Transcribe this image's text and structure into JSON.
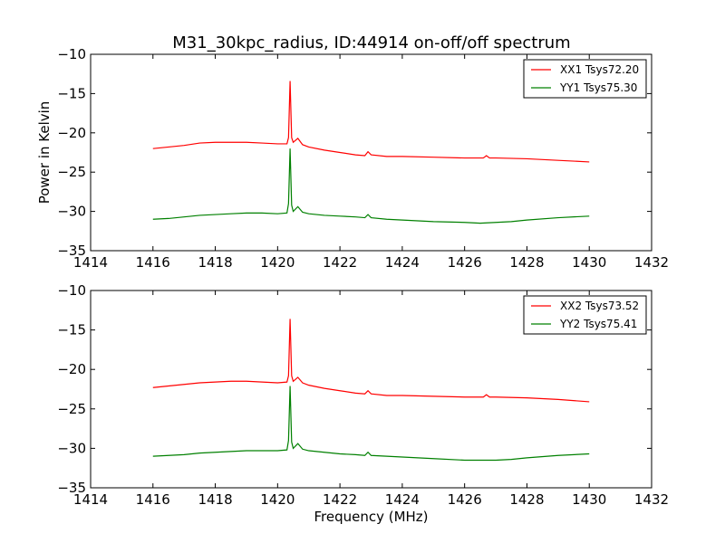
{
  "figure": {
    "title": "M31_30kpc_radius, ID:44914 on-off/off spectrum"
  },
  "chart_data": [
    {
      "type": "line",
      "title": "M31_30kpc_radius, ID:44914 on-off/off spectrum",
      "xlabel": "",
      "ylabel": "Power in Kelvin",
      "xlim": [
        1414,
        1432
      ],
      "ylim": [
        -35,
        -10
      ],
      "xticks": [
        1414,
        1416,
        1418,
        1420,
        1422,
        1424,
        1426,
        1428,
        1430,
        1432
      ],
      "yticks": [
        -35,
        -30,
        -25,
        -20,
        -15,
        -10
      ],
      "legend_position": "upper right",
      "series": [
        {
          "name": "XX1 Tsys72.20",
          "color": "#ff0000",
          "points": [
            [
              1416,
              -22.0
            ],
            [
              1416.5,
              -21.8
            ],
            [
              1417,
              -21.6
            ],
            [
              1417.5,
              -21.3
            ],
            [
              1418,
              -21.2
            ],
            [
              1418.5,
              -21.2
            ],
            [
              1419,
              -21.2
            ],
            [
              1419.5,
              -21.3
            ],
            [
              1420,
              -21.4
            ],
            [
              1420.3,
              -21.4
            ],
            [
              1420.35,
              -20.6
            ],
            [
              1420.4,
              -13.4
            ],
            [
              1420.45,
              -20.6
            ],
            [
              1420.5,
              -21.2
            ],
            [
              1420.65,
              -20.7
            ],
            [
              1420.8,
              -21.5
            ],
            [
              1421,
              -21.8
            ],
            [
              1421.5,
              -22.2
            ],
            [
              1422,
              -22.5
            ],
            [
              1422.5,
              -22.8
            ],
            [
              1422.8,
              -22.9
            ],
            [
              1422.9,
              -22.4
            ],
            [
              1423,
              -22.8
            ],
            [
              1423.5,
              -23.0
            ],
            [
              1424,
              -23.0
            ],
            [
              1425,
              -23.1
            ],
            [
              1426,
              -23.2
            ],
            [
              1426.6,
              -23.2
            ],
            [
              1426.7,
              -22.9
            ],
            [
              1426.8,
              -23.2
            ],
            [
              1427,
              -23.2
            ],
            [
              1428,
              -23.3
            ],
            [
              1429,
              -23.5
            ],
            [
              1430,
              -23.7
            ]
          ]
        },
        {
          "name": "YY1 Tsys75.30",
          "color": "#008000",
          "points": [
            [
              1416,
              -31.0
            ],
            [
              1416.5,
              -30.9
            ],
            [
              1417,
              -30.7
            ],
            [
              1417.5,
              -30.5
            ],
            [
              1418,
              -30.4
            ],
            [
              1418.5,
              -30.3
            ],
            [
              1419,
              -30.2
            ],
            [
              1419.5,
              -30.2
            ],
            [
              1420,
              -30.3
            ],
            [
              1420.3,
              -30.2
            ],
            [
              1420.35,
              -29.0
            ],
            [
              1420.4,
              -22.0
            ],
            [
              1420.45,
              -29.2
            ],
            [
              1420.5,
              -30.0
            ],
            [
              1420.65,
              -29.4
            ],
            [
              1420.8,
              -30.1
            ],
            [
              1421,
              -30.3
            ],
            [
              1421.5,
              -30.5
            ],
            [
              1422,
              -30.6
            ],
            [
              1422.5,
              -30.7
            ],
            [
              1422.8,
              -30.8
            ],
            [
              1422.9,
              -30.4
            ],
            [
              1423,
              -30.8
            ],
            [
              1423.5,
              -31.0
            ],
            [
              1424,
              -31.1
            ],
            [
              1425,
              -31.3
            ],
            [
              1426,
              -31.4
            ],
            [
              1426.5,
              -31.5
            ],
            [
              1427,
              -31.4
            ],
            [
              1427.5,
              -31.3
            ],
            [
              1428,
              -31.1
            ],
            [
              1429,
              -30.8
            ],
            [
              1430,
              -30.6
            ]
          ]
        }
      ]
    },
    {
      "type": "line",
      "xlabel": "Frequency (MHz)",
      "ylabel": "",
      "xlim": [
        1414,
        1432
      ],
      "ylim": [
        -35,
        -10
      ],
      "xticks": [
        1414,
        1416,
        1418,
        1420,
        1422,
        1424,
        1426,
        1428,
        1430,
        1432
      ],
      "yticks": [
        -35,
        -30,
        -25,
        -20,
        -15,
        -10
      ],
      "legend_position": "upper right",
      "series": [
        {
          "name": "XX2 Tsys73.52",
          "color": "#ff0000",
          "points": [
            [
              1416,
              -22.3
            ],
            [
              1416.5,
              -22.1
            ],
            [
              1417,
              -21.9
            ],
            [
              1417.5,
              -21.7
            ],
            [
              1418,
              -21.6
            ],
            [
              1418.5,
              -21.5
            ],
            [
              1419,
              -21.5
            ],
            [
              1419.5,
              -21.6
            ],
            [
              1420,
              -21.7
            ],
            [
              1420.3,
              -21.6
            ],
            [
              1420.35,
              -20.8
            ],
            [
              1420.4,
              -13.6
            ],
            [
              1420.45,
              -20.8
            ],
            [
              1420.5,
              -21.5
            ],
            [
              1420.65,
              -21.0
            ],
            [
              1420.8,
              -21.7
            ],
            [
              1421,
              -22.0
            ],
            [
              1421.5,
              -22.4
            ],
            [
              1422,
              -22.7
            ],
            [
              1422.5,
              -23.0
            ],
            [
              1422.8,
              -23.1
            ],
            [
              1422.9,
              -22.7
            ],
            [
              1423,
              -23.1
            ],
            [
              1423.5,
              -23.3
            ],
            [
              1424,
              -23.3
            ],
            [
              1425,
              -23.4
            ],
            [
              1426,
              -23.5
            ],
            [
              1426.6,
              -23.5
            ],
            [
              1426.7,
              -23.2
            ],
            [
              1426.8,
              -23.5
            ],
            [
              1427,
              -23.5
            ],
            [
              1428,
              -23.6
            ],
            [
              1429,
              -23.8
            ],
            [
              1430,
              -24.1
            ]
          ]
        },
        {
          "name": "YY2 Tsys75.41",
          "color": "#008000",
          "points": [
            [
              1416,
              -31.0
            ],
            [
              1416.5,
              -30.9
            ],
            [
              1417,
              -30.8
            ],
            [
              1417.5,
              -30.6
            ],
            [
              1418,
              -30.5
            ],
            [
              1418.5,
              -30.4
            ],
            [
              1419,
              -30.3
            ],
            [
              1419.5,
              -30.3
            ],
            [
              1420,
              -30.3
            ],
            [
              1420.3,
              -30.2
            ],
            [
              1420.35,
              -29.0
            ],
            [
              1420.4,
              -22.1
            ],
            [
              1420.45,
              -29.2
            ],
            [
              1420.5,
              -30.0
            ],
            [
              1420.65,
              -29.4
            ],
            [
              1420.8,
              -30.1
            ],
            [
              1421,
              -30.3
            ],
            [
              1421.5,
              -30.5
            ],
            [
              1422,
              -30.7
            ],
            [
              1422.5,
              -30.8
            ],
            [
              1422.8,
              -30.9
            ],
            [
              1422.9,
              -30.5
            ],
            [
              1423,
              -30.9
            ],
            [
              1423.5,
              -31.0
            ],
            [
              1424,
              -31.1
            ],
            [
              1425,
              -31.3
            ],
            [
              1426,
              -31.5
            ],
            [
              1426.5,
              -31.5
            ],
            [
              1427,
              -31.5
            ],
            [
              1427.5,
              -31.4
            ],
            [
              1428,
              -31.2
            ],
            [
              1429,
              -30.9
            ],
            [
              1430,
              -30.7
            ]
          ]
        }
      ]
    }
  ]
}
